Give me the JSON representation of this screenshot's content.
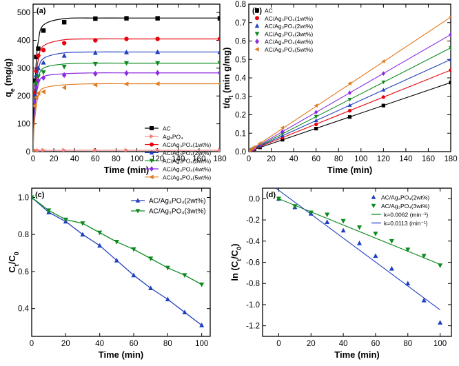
{
  "chart_data": [
    {
      "panel": "(a)",
      "type": "line",
      "xlabel": "Time (min)",
      "ylabel": "q_e (mg/g)",
      "xlim": [
        0,
        180
      ],
      "ylim": [
        0,
        530
      ],
      "xticks": [
        0,
        20,
        40,
        60,
        80,
        100,
        120,
        140,
        160,
        180
      ],
      "yticks": [
        0,
        100,
        200,
        300,
        400,
        500
      ],
      "legend_position": "lower-right",
      "series": [
        {
          "name": "AC",
          "color": "#000000",
          "marker": "square",
          "x": [
            0,
            1,
            3,
            5,
            10,
            30,
            60,
            90,
            120,
            180
          ],
          "y": [
            0,
            255,
            340,
            370,
            435,
            465,
            478,
            479,
            479,
            479
          ],
          "fit_y": [
            0,
            180,
            320,
            395,
            455,
            478,
            480,
            480,
            480,
            480
          ]
        },
        {
          "name": "Ag₃PO₄",
          "color": "#f08080",
          "marker": "triangle-right",
          "x": [
            0,
            1,
            3,
            5,
            10,
            30,
            60,
            90,
            120,
            180
          ],
          "y": [
            0,
            2,
            3,
            4,
            5,
            5,
            5,
            5,
            5,
            5
          ],
          "fit_y": [
            0,
            2,
            3,
            4,
            5,
            5,
            5,
            5,
            5,
            5
          ]
        },
        {
          "name": "AC/Ag₃PO₄(1wt%)",
          "color": "#e8000b",
          "marker": "circle",
          "x": [
            0,
            1,
            3,
            5,
            10,
            30,
            60,
            90,
            120,
            180
          ],
          "y": [
            0,
            210,
            290,
            345,
            365,
            390,
            400,
            405,
            405,
            405
          ],
          "fit_y": [
            0,
            150,
            270,
            330,
            380,
            402,
            405,
            405,
            405,
            405
          ]
        },
        {
          "name": "AC/Ag₃PO₄(2wt%)",
          "color": "#1f3fbf",
          "marker": "triangle-up",
          "x": [
            0,
            1,
            3,
            5,
            10,
            30,
            60,
            90,
            120,
            180
          ],
          "y": [
            0,
            200,
            275,
            300,
            320,
            345,
            355,
            357,
            358,
            358
          ],
          "fit_y": [
            0,
            130,
            235,
            290,
            335,
            355,
            358,
            358,
            358,
            358
          ]
        },
        {
          "name": "AC/Ag₃PO₄(3wt%)",
          "color": "#0c8a1e",
          "marker": "triangle-down",
          "x": [
            0,
            1,
            3,
            5,
            10,
            30,
            60,
            90,
            120,
            180
          ],
          "y": [
            0,
            185,
            245,
            270,
            285,
            305,
            315,
            318,
            318,
            318
          ],
          "fit_y": [
            0,
            120,
            210,
            260,
            300,
            315,
            318,
            318,
            318,
            318
          ]
        },
        {
          "name": "AC/Ag₃PO₄(4wt%)",
          "color": "#8a2be2",
          "marker": "diamond",
          "x": [
            0,
            1,
            3,
            5,
            10,
            30,
            60,
            90,
            120,
            180
          ],
          "y": [
            0,
            180,
            230,
            255,
            265,
            275,
            280,
            282,
            283,
            283
          ],
          "fit_y": [
            0,
            110,
            195,
            240,
            270,
            280,
            283,
            283,
            283,
            283
          ]
        },
        {
          "name": "AC/Ag₃PO₄(5wt%)",
          "color": "#e07b20",
          "marker": "triangle-left",
          "x": [
            0,
            1,
            3,
            5,
            10,
            30,
            60,
            90,
            120,
            180
          ],
          "y": [
            0,
            165,
            195,
            210,
            215,
            230,
            240,
            243,
            244,
            244
          ],
          "fit_y": [
            0,
            90,
            160,
            200,
            228,
            240,
            244,
            244,
            244,
            244
          ]
        }
      ]
    },
    {
      "panel": "(b)",
      "type": "line",
      "xlabel": "Time  (min)",
      "ylabel": "t/q_t (min g/mg)",
      "xlim": [
        0,
        180
      ],
      "ylim": [
        0,
        0.8
      ],
      "xticks": [
        0,
        20,
        40,
        60,
        80,
        100,
        120,
        140,
        160,
        180
      ],
      "yticks": [
        0.0,
        0.1,
        0.2,
        0.3,
        0.4,
        0.5,
        0.6,
        0.7,
        0.8
      ],
      "legend_position": "top-left",
      "series": [
        {
          "name": "AC",
          "color": "#000000",
          "marker": "square",
          "x": [
            1,
            3,
            5,
            10,
            30,
            60,
            90,
            120,
            180
          ],
          "y": [
            0.004,
            0.009,
            0.013,
            0.023,
            0.065,
            0.125,
            0.188,
            0.25,
            0.375
          ],
          "fit": [
            0.002,
            0.00207
          ]
        },
        {
          "name": "AC/Ag₃PO₄(1wt%)",
          "color": "#e8000b",
          "marker": "circle",
          "x": [
            1,
            3,
            5,
            10,
            30,
            60,
            90,
            120,
            180
          ],
          "y": [
            0.005,
            0.01,
            0.015,
            0.027,
            0.076,
            0.148,
            0.222,
            0.296,
            0.442
          ],
          "fit": [
            0.003,
            0.00244
          ]
        },
        {
          "name": "AC/Ag₃PO₄(2wt%)",
          "color": "#1f3fbf",
          "marker": "triangle-up",
          "x": [
            1,
            3,
            5,
            10,
            30,
            60,
            90,
            120,
            180
          ],
          "y": [
            0.005,
            0.011,
            0.017,
            0.031,
            0.087,
            0.169,
            0.252,
            0.335,
            0.5
          ],
          "fit": [
            0.003,
            0.00276
          ]
        },
        {
          "name": "AC/Ag₃PO₄(3wt%)",
          "color": "#0c8a1e",
          "marker": "triangle-down",
          "x": [
            1,
            3,
            5,
            10,
            30,
            60,
            90,
            120,
            180
          ],
          "y": [
            0.005,
            0.012,
            0.019,
            0.035,
            0.098,
            0.19,
            0.283,
            0.377,
            0.563
          ],
          "fit": [
            0.003,
            0.00311
          ]
        },
        {
          "name": "AC/Ag₃PO₄(4wt%)",
          "color": "#8a2be2",
          "marker": "diamond",
          "x": [
            1,
            3,
            5,
            10,
            30,
            60,
            90,
            120,
            180
          ],
          "y": [
            0.006,
            0.013,
            0.02,
            0.038,
            0.109,
            0.214,
            0.319,
            0.424,
            0.636
          ],
          "fit": [
            0.003,
            0.00351
          ]
        },
        {
          "name": "AC/Ag₃PO₄(5wt%)",
          "color": "#e07b20",
          "marker": "triangle-left",
          "x": [
            1,
            3,
            5,
            10,
            30,
            60,
            90,
            120,
            180
          ],
          "y": [
            0.006,
            0.015,
            0.024,
            0.046,
            0.13,
            0.25,
            0.37,
            0.49,
            0.73
          ],
          "fit": [
            0.004,
            0.00403
          ]
        }
      ]
    },
    {
      "panel": "(c)",
      "type": "line",
      "xlabel": "Time (min)",
      "ylabel": "C_t/C_0",
      "xlim": [
        0,
        105
      ],
      "ylim": [
        0.25,
        1.05
      ],
      "xticks": [
        0,
        20,
        40,
        60,
        80,
        100
      ],
      "yticks": [
        0.4,
        0.6,
        0.8,
        1.0
      ],
      "legend_position": "top-right",
      "series": [
        {
          "name": "AC/Ag₃PO₄(2wt%)",
          "color": "#1f3fbf",
          "marker": "triangle-up",
          "x": [
            0,
            10,
            20,
            30,
            40,
            50,
            60,
            70,
            80,
            90,
            100
          ],
          "y": [
            1.0,
            0.92,
            0.87,
            0.8,
            0.74,
            0.66,
            0.58,
            0.51,
            0.45,
            0.38,
            0.31
          ]
        },
        {
          "name": "AC/Ag₃PO₄(3wt%)",
          "color": "#0c8a1e",
          "marker": "triangle-down",
          "x": [
            0,
            10,
            20,
            30,
            40,
            50,
            60,
            70,
            80,
            90,
            100
          ],
          "y": [
            1.0,
            0.93,
            0.88,
            0.86,
            0.81,
            0.76,
            0.72,
            0.67,
            0.62,
            0.58,
            0.53
          ]
        }
      ]
    },
    {
      "panel": "(d)",
      "type": "scatter",
      "xlabel": "Time (min)",
      "ylabel": "ln (C_t/C_0)",
      "xlim": [
        -10,
        107
      ],
      "ylim": [
        -1.3,
        0.1
      ],
      "xticks": [
        0,
        20,
        40,
        60,
        80,
        100
      ],
      "yticks": [
        0.0,
        -0.2,
        -0.4,
        -0.6,
        -0.8,
        -1.0,
        -1.2
      ],
      "legend_position": "top-right",
      "series": [
        {
          "name": "AC/Ag₃PO₄(2wt%)",
          "color": "#1f3fbf",
          "marker": "triangle-up",
          "x": [
            0,
            10,
            20,
            30,
            40,
            50,
            60,
            70,
            80,
            90,
            100
          ],
          "y": [
            0.0,
            -0.08,
            -0.14,
            -0.22,
            -0.3,
            -0.42,
            -0.54,
            -0.66,
            -0.8,
            -0.96,
            -1.17
          ]
        },
        {
          "name": "AC/Ag₃PO₄(3wt%)",
          "color": "#0c8a1e",
          "marker": "triangle-down",
          "x": [
            0,
            10,
            20,
            30,
            40,
            50,
            60,
            70,
            80,
            90,
            100
          ],
          "y": [
            0.0,
            -0.07,
            -0.13,
            -0.15,
            -0.21,
            -0.27,
            -0.33,
            -0.4,
            -0.48,
            -0.54,
            -0.63
          ]
        }
      ],
      "fits": [
        {
          "name": "k=0.0062 (min⁻¹)",
          "color": "#0c8a1e",
          "slope": -0.0062,
          "intercept": 0.0,
          "x_range": [
            0,
            100
          ]
        },
        {
          "name": "k=0.0113 (min⁻¹)",
          "color": "#1f3fbf",
          "slope": -0.0113,
          "intercept": 0.08,
          "x_range": [
            -2,
            100
          ]
        }
      ]
    }
  ]
}
